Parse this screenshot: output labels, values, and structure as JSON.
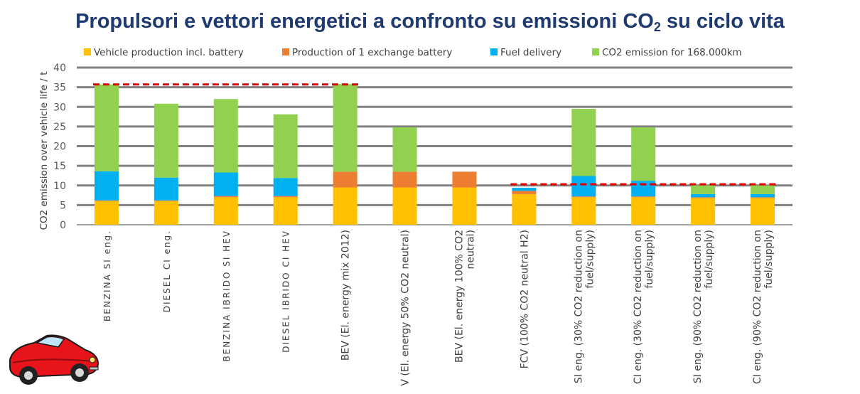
{
  "title": {
    "text": "Propulsori e vettori energetici a confronto su emissioni CO",
    "subscript": "2",
    "tail": " su ciclo vita"
  },
  "colors": {
    "vehicle_production": "#ffc000",
    "exchange_battery": "#ed7d31",
    "fuel_delivery": "#00b0f0",
    "co2_emission": "#92d050",
    "gridline": "#808080",
    "reference_line": "#e00000",
    "title": "#1f3a6e"
  },
  "decoration": {
    "car_icon": "red-cartoon-car-icon"
  },
  "chart_data": {
    "type": "bar",
    "stacked": true,
    "ylabel": "CO2 emission over vehicle life / t",
    "ylim": [
      0,
      40
    ],
    "yticks": [
      0,
      5,
      10,
      15,
      20,
      25,
      30,
      35,
      40
    ],
    "grid": true,
    "legend_position": "top",
    "categories": [
      [
        "BENZINA  SI eng."
      ],
      [
        "DIESEL  CI eng."
      ],
      [
        "BENZINA IBRIDO  SI HEV"
      ],
      [
        "DIESEL IBRIDO  CI HEV"
      ],
      [
        "BEV (El. energy mix 2012)"
      ],
      [
        "V (El. energy 50% CO2 neutral)"
      ],
      [
        "BEV (El. energy 100% CO2",
        "neutral)"
      ],
      [
        "FCV (100% CO2 neutral H2)"
      ],
      [
        "SI eng. (30% CO2 reduction on",
        "fuel/supply)"
      ],
      [
        "CI eng. (30% CO2 reduction on",
        "fuel/supply)"
      ],
      [
        "SI eng. (90% CO2 reduction on",
        "fuel/supply)"
      ],
      [
        "CI eng. (90% CO2 reduction on",
        "fuel/supply)"
      ]
    ],
    "series": [
      {
        "name": "Vehicle production incl. battery",
        "color_key": "vehicle_production",
        "values": [
          6.0,
          6.0,
          7.0,
          7.0,
          9.5,
          9.5,
          9.5,
          7.8,
          7.0,
          7.0,
          6.8,
          6.8
        ]
      },
      {
        "name": "Production of 1 exchange battery",
        "color_key": "exchange_battery",
        "values": [
          0.2,
          0.2,
          0.3,
          0.3,
          4.0,
          4.0,
          4.0,
          0.8,
          0.2,
          0.2,
          0.2,
          0.2
        ]
      },
      {
        "name": "Fuel delivery",
        "color_key": "fuel_delivery",
        "values": [
          7.4,
          5.8,
          6.0,
          4.6,
          0.0,
          0.0,
          0.0,
          0.8,
          5.2,
          4.0,
          0.8,
          0.8
        ]
      },
      {
        "name": "CO2 emission for 168.000km",
        "color_key": "co2_emission",
        "values": [
          22.1,
          18.8,
          18.7,
          16.2,
          22.3,
          11.3,
          0.0,
          0.0,
          17.1,
          13.6,
          2.2,
          2.2
        ]
      }
    ],
    "reference_lines": [
      {
        "y": 35.7,
        "from_category": 0,
        "to_category": 4
      },
      {
        "y": 10.3,
        "from_category": 7,
        "to_category": 11
      }
    ]
  }
}
